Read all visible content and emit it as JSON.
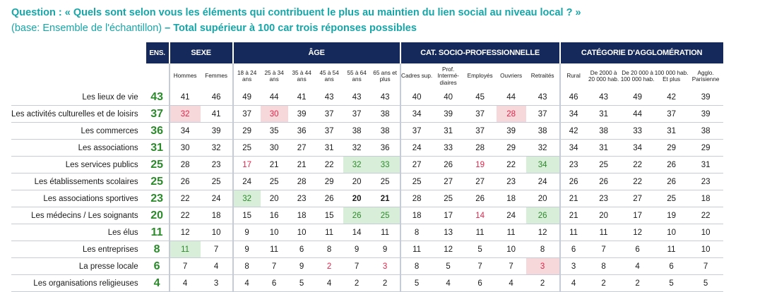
{
  "question": {
    "line1": "Question : « Quels sont selon vous les éléments qui contribuent le plus au maintien du lien social au niveau local ? »",
    "line2_base": "(base: Ensemble de l'échantillon)",
    "line2_note": " – Total supérieur à 100 car trois réponses possibles"
  },
  "colors": {
    "header_bg": "#15295b",
    "accent": "#17a6a8",
    "green": "#2a8a2a",
    "red": "#e0254a",
    "hl_red": "#f6d7da",
    "hl_green": "#d9eed9"
  },
  "chart_data": {
    "type": "table",
    "ens_header": "ENS.",
    "groups": [
      {
        "label": "SEXE",
        "columns": [
          "Hommes",
          "Femmes"
        ]
      },
      {
        "label": "ÂGE",
        "columns": [
          "18 à 24 ans",
          "25 à 34 ans",
          "35 à 44 ans",
          "45 à 54 ans",
          "55 à 64 ans",
          "65 ans et plus"
        ]
      },
      {
        "label": "CAT. SOCIO-PROFESSIONNELLE",
        "columns": [
          "Cadres sup.",
          "Prof. Intermé-diaires",
          "Employés",
          "Ouvriers",
          "Retraités"
        ]
      },
      {
        "label": "CATÉGORIE D'AGGLOMÉRATION",
        "columns": [
          "Rural",
          "De 2000 à 20 000 hab.",
          "De 20 000 à 100 000 hab.",
          "100 000 hab. Et plus",
          "Agglo. Parisienne"
        ]
      }
    ],
    "rows": [
      {
        "label": "Les lieux de vie",
        "ens": "43",
        "values": [
          "41",
          "46",
          "49",
          "44",
          "41",
          "43",
          "43",
          "43",
          "40",
          "40",
          "45",
          "44",
          "43",
          "46",
          "43",
          "49",
          "42",
          "39"
        ]
      },
      {
        "label": "Les activités culturelles et de loisirs",
        "ens": "37",
        "values": [
          "32",
          "41",
          "37",
          "30",
          "39",
          "37",
          "37",
          "38",
          "34",
          "39",
          "37",
          "28",
          "37",
          "34",
          "31",
          "44",
          "37",
          "39"
        ]
      },
      {
        "label": "Les commerces",
        "ens": "36",
        "values": [
          "34",
          "39",
          "29",
          "35",
          "36",
          "37",
          "38",
          "38",
          "37",
          "31",
          "37",
          "39",
          "38",
          "42",
          "38",
          "33",
          "31",
          "38"
        ]
      },
      {
        "label": "Les associations",
        "ens": "31",
        "values": [
          "30",
          "32",
          "25",
          "30",
          "27",
          "31",
          "32",
          "36",
          "24",
          "33",
          "28",
          "29",
          "32",
          "34",
          "31",
          "34",
          "29",
          "29"
        ]
      },
      {
        "label": "Les services publics",
        "ens": "25",
        "values": [
          "28",
          "23",
          "17",
          "21",
          "21",
          "22",
          "32",
          "33",
          "27",
          "26",
          "19",
          "22",
          "34",
          "23",
          "25",
          "22",
          "26",
          "31"
        ]
      },
      {
        "label": "Les établissements scolaires",
        "ens": "25",
        "values": [
          "26",
          "25",
          "24",
          "25",
          "28",
          "29",
          "20",
          "25",
          "25",
          "27",
          "27",
          "23",
          "24",
          "26",
          "26",
          "22",
          "26",
          "23"
        ]
      },
      {
        "label": "Les associations sportives",
        "ens": "23",
        "values": [
          "22",
          "24",
          "32",
          "20",
          "23",
          "26",
          "20",
          "21",
          "28",
          "25",
          "26",
          "18",
          "20",
          "21",
          "23",
          "27",
          "25",
          "18"
        ]
      },
      {
        "label": "Les médecins / Les soignants",
        "ens": "20",
        "values": [
          "22",
          "18",
          "15",
          "16",
          "18",
          "15",
          "26",
          "25",
          "18",
          "17",
          "14",
          "24",
          "26",
          "21",
          "20",
          "17",
          "19",
          "22"
        ]
      },
      {
        "label": "Les élus",
        "ens": "11",
        "values": [
          "12",
          "10",
          "9",
          "10",
          "10",
          "11",
          "14",
          "11",
          "8",
          "13",
          "11",
          "11",
          "12",
          "11",
          "11",
          "12",
          "10",
          "10"
        ]
      },
      {
        "label": "Les entreprises",
        "ens": "8",
        "values": [
          "11",
          "7",
          "9",
          "11",
          "6",
          "8",
          "9",
          "9",
          "11",
          "12",
          "5",
          "10",
          "8",
          "6",
          "7",
          "6",
          "11",
          "10"
        ]
      },
      {
        "label": "La presse locale",
        "ens": "6",
        "values": [
          "7",
          "4",
          "8",
          "7",
          "9",
          "2",
          "7",
          "3",
          "8",
          "5",
          "7",
          "7",
          "3",
          "3",
          "8",
          "4",
          "6",
          "7"
        ]
      },
      {
        "label": "Les organisations religieuses",
        "ens": "4",
        "values": [
          "4",
          "3",
          "4",
          "6",
          "5",
          "4",
          "2",
          "2",
          "5",
          "4",
          "6",
          "4",
          "2",
          "4",
          "2",
          "2",
          "5",
          "5"
        ]
      }
    ]
  }
}
